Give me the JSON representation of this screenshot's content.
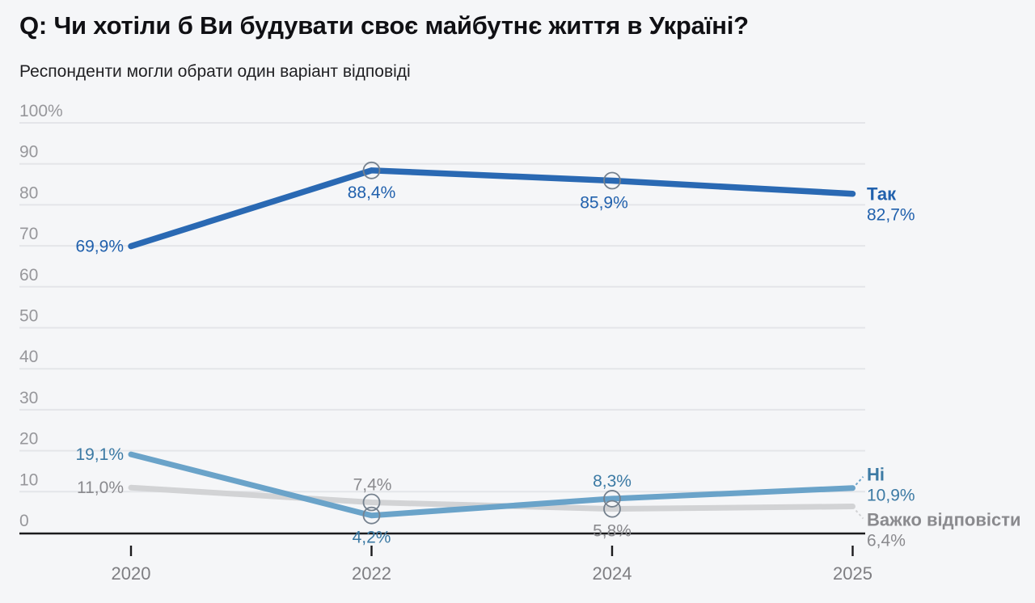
{
  "header": {
    "title": "Q: Чи хотіли б Ви будувати своє майбутнє життя в Україні?",
    "subtitle": "Респонденти могли обрати один варіант відповіді"
  },
  "colors": {
    "background": "#f5f6f8",
    "title_text": "#101014",
    "subtitle_text": "#212124",
    "gridline": "#e4e5e9",
    "axis_line": "#1b1b1d",
    "y_tick_label": "#97979b",
    "category_label": "#7e7e82",
    "marker_stroke": "#75818e",
    "yes_line": "#2a69b3",
    "yes_label": "#2161ad",
    "no_line": "#6aa3c9",
    "no_label": "#3c7aa4",
    "hard_line": "#d2d3d5",
    "hard_label": "#8a8a8e"
  },
  "chart_data": {
    "type": "line",
    "title": "Q: Чи хотіли б Ви будувати своє майбутнє життя в Україні?",
    "subtitle": "Респонденти могли обрати один варіант відповіді",
    "grid": true,
    "legend_position": "end-of-line-right",
    "x_axis": {
      "categories": [
        "2020",
        "2022",
        "2024",
        "2025"
      ]
    },
    "y_axis": {
      "range": [
        0,
        100
      ],
      "ticks": [
        {
          "value": 100,
          "label": "100%"
        },
        {
          "value": 90,
          "label": "90"
        },
        {
          "value": 80,
          "label": "80"
        },
        {
          "value": 70,
          "label": "70"
        },
        {
          "value": 60,
          "label": "60"
        },
        {
          "value": 50,
          "label": "50"
        },
        {
          "value": 40,
          "label": "40"
        },
        {
          "value": 30,
          "label": "30"
        },
        {
          "value": 20,
          "label": "20"
        },
        {
          "value": 10,
          "label": "10"
        },
        {
          "value": 0,
          "label": "0"
        }
      ]
    },
    "series": [
      {
        "name": "Так",
        "slug": "yes",
        "values": [
          69.9,
          88.4,
          85.9,
          82.7
        ],
        "point_labels": [
          "69,9%",
          "88,4%",
          "85,9%",
          "82,7%"
        ],
        "label_pos": [
          "left",
          "below",
          "below",
          "end"
        ],
        "label_dx": [
          0,
          0,
          -10,
          0
        ],
        "line_color": "#2a69b3",
        "line_width": 7.5,
        "value_label_color": "#2161ad",
        "end_dy": 8,
        "connector": "none",
        "markers": [
          1,
          2
        ]
      },
      {
        "name": "Ні",
        "slug": "no",
        "values": [
          19.1,
          4.2,
          8.3,
          10.9
        ],
        "point_labels": [
          "19,1%",
          "4,2%",
          "8,3%",
          "10,9%"
        ],
        "label_pos": [
          "left",
          "below",
          "above",
          "end"
        ],
        "label_dx": [
          0,
          0,
          0,
          0
        ],
        "line_color": "#6aa3c9",
        "line_width": 7,
        "value_label_color": "#3c7aa4",
        "end_dy": -9,
        "connector": "up",
        "markers": [
          1,
          2
        ]
      },
      {
        "name": "Важко відповісти",
        "slug": "hard-to-answer",
        "values": [
          11.0,
          7.4,
          5.8,
          6.4
        ],
        "point_labels": [
          "11,0%",
          "7,4%",
          "5,8%",
          "6,4%"
        ],
        "label_pos": [
          "left",
          "above",
          "below",
          "end"
        ],
        "label_dx": [
          0,
          1,
          0,
          0
        ],
        "line_color": "#d2d3d5",
        "line_width": 7,
        "value_label_color": "#8a8a8e",
        "end_dy": 24,
        "connector": "down",
        "markers": [
          1,
          2
        ]
      }
    ]
  }
}
